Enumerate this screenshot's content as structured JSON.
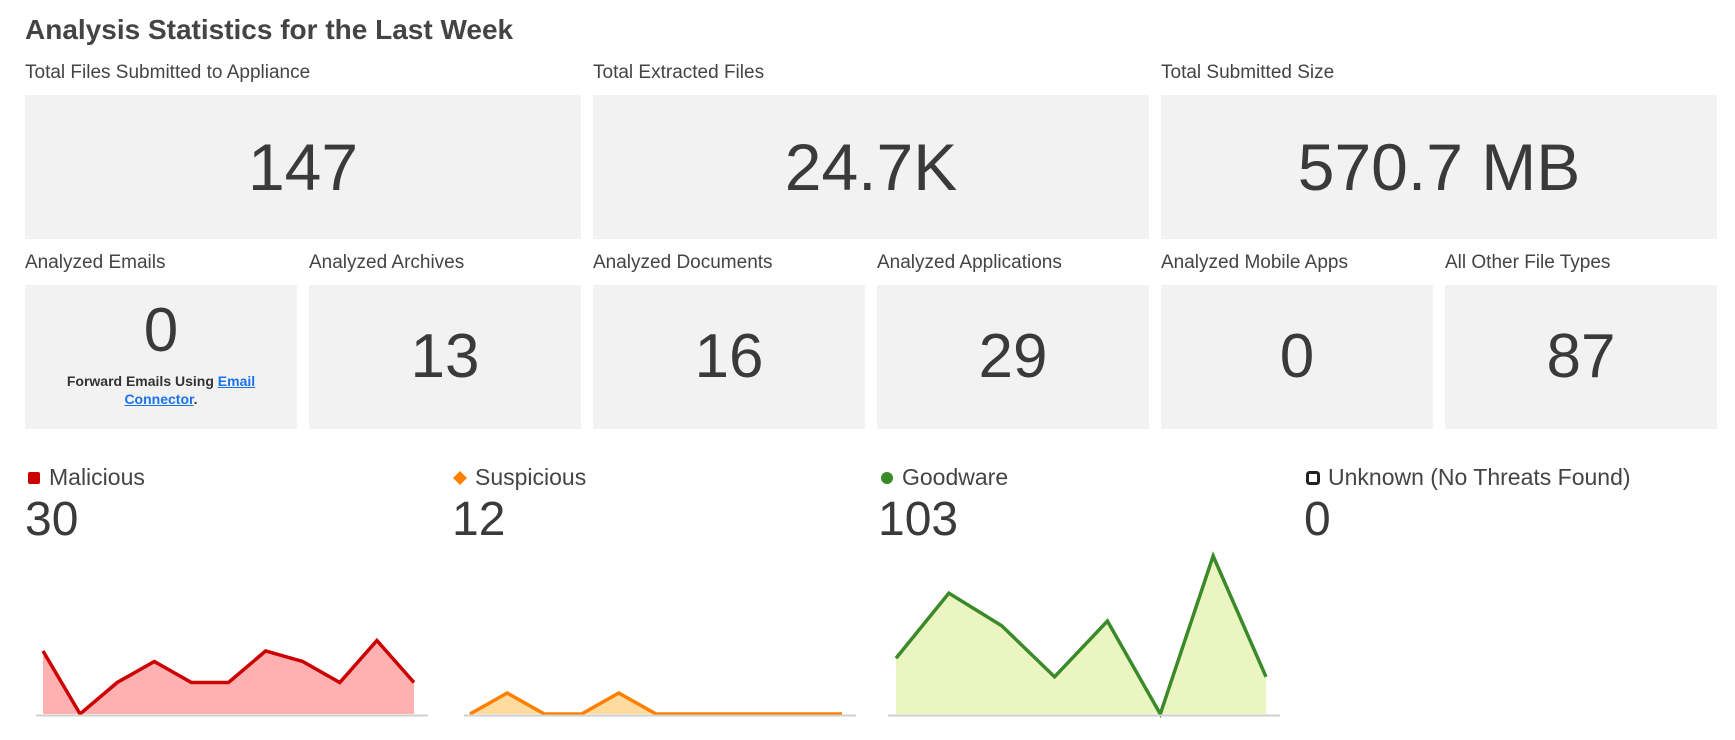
{
  "page_title": "Analysis Statistics for the Last Week",
  "top_stats": [
    {
      "label": "Total Files Submitted to Appliance",
      "value": "147"
    },
    {
      "label": "Total Extracted Files",
      "value": "24.7K"
    },
    {
      "label": "Total Submitted Size",
      "value": "570.7 MB"
    }
  ],
  "type_stats": [
    {
      "label": "Analyzed Emails",
      "value": "0",
      "note_prefix": "Forward Emails Using ",
      "note_link": "Email Connector",
      "note_suffix": "."
    },
    {
      "label": "Analyzed Archives",
      "value": "13"
    },
    {
      "label": "Analyzed Documents",
      "value": "16"
    },
    {
      "label": "Analyzed Applications",
      "value": "29"
    },
    {
      "label": "Analyzed Mobile Apps",
      "value": "0"
    },
    {
      "label": "All Other File Types",
      "value": "87"
    }
  ],
  "classifications": [
    {
      "name": "Malicious",
      "count": "30",
      "color": "#cc0000",
      "fill": "#ffb0b0",
      "icon": "square-icon"
    },
    {
      "name": "Suspicious",
      "count": "12",
      "color": "#ff8000",
      "fill": "#ffdba0",
      "icon": "diamond-icon"
    },
    {
      "name": "Goodware",
      "count": "103",
      "color": "#3a8a2a",
      "fill": "#eaf5c2",
      "icon": "circle-icon"
    },
    {
      "name": "Unknown (No Threats Found)",
      "count": "0",
      "color": "#222222",
      "fill": "#ffffff",
      "icon": "hollow-square-icon"
    }
  ],
  "chart_data": [
    {
      "type": "area",
      "series": [
        {
          "name": "Malicious",
          "values": [
            3,
            0,
            1.5,
            2.5,
            1.5,
            1.5,
            3,
            2.5,
            1.5,
            3.5,
            1.5
          ]
        }
      ],
      "ylim": [
        0,
        6
      ]
    },
    {
      "type": "area",
      "series": [
        {
          "name": "Suspicious",
          "values": [
            0,
            1,
            0,
            0,
            1,
            0,
            0,
            0,
            0,
            0,
            0
          ]
        }
      ],
      "ylim": [
        0,
        6
      ]
    },
    {
      "type": "area",
      "series": [
        {
          "name": "Goodware",
          "values": [
            6,
            13,
            9.5,
            4,
            10,
            0,
            17,
            4
          ]
        }
      ],
      "ylim": [
        0,
        17
      ]
    }
  ]
}
